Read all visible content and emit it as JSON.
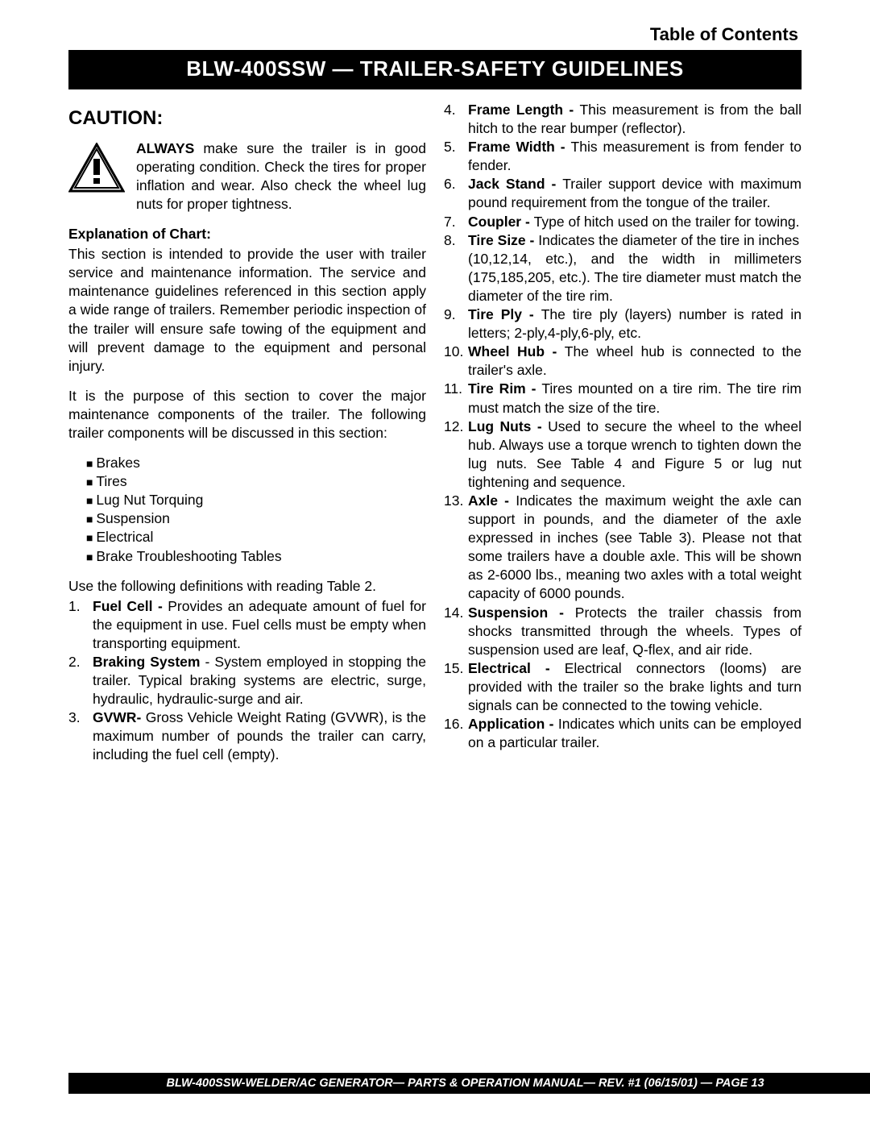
{
  "toc_label": "Table of Contents",
  "title_bar": "BLW-400SSW  — TRAILER-SAFETY GUIDELINES",
  "caution_heading": "CAUTION:",
  "caution_text_prefix": "ALWAYS",
  "caution_text_rest": " make sure the trailer is in good operating condition.  Check the tires for proper inflation and wear.  Also check the wheel lug nuts for proper tightness.",
  "explanation_heading": "Explanation of Chart:",
  "explanation_p1": "This section is intended to provide the user with trailer service and maintenance information.  The service and maintenance guidelines referenced in this section apply a wide range of trailers.  Remember periodic inspection of the trailer will ensure safe towing of the equipment and will prevent damage to the equipment and personal injury.",
  "explanation_p2": "It is the purpose of this section to cover the major maintenance components of the trailer.  The following trailer components will be discussed in this section:",
  "bullets": [
    "Brakes",
    "Tires",
    "Lug Nut Torquing",
    "Suspension",
    "Electrical",
    "Brake Troubleshooting Tables"
  ],
  "use_defs_line": "Use the following definitions with reading Table 2.",
  "defs_left": [
    {
      "n": "1.",
      "term": "Fuel Cell - ",
      "body": "Provides an adequate amount of fuel for the equipment in use.  Fuel cells must be empty when transporting equipment."
    },
    {
      "n": "2.",
      "term": "Braking System ",
      "body": "- System employed in stopping the trailer. Typical braking systems are electric, surge, hydraulic, hydraulic-surge and air."
    },
    {
      "n": "3.",
      "term": "GVWR- ",
      "body": "Gross Vehicle Weight Rating (GVWR), is the maximum number of pounds the trailer can carry, including the fuel cell (empty)."
    }
  ],
  "defs_right": [
    {
      "n": "4.",
      "term": "Frame Length - ",
      "body": "This measurement is from the ball hitch to the rear bumper (reflector)."
    },
    {
      "n": "5.",
      "term": "Frame Width - ",
      "body": "This measurement is from fender to fender."
    },
    {
      "n": "6.",
      "term": "Jack Stand - ",
      "body": "Trailer support device with maximum pound requirement from the tongue of the trailer."
    },
    {
      "n": "7.",
      "term": "Coupler - ",
      "body": "Type of hitch used on the trailer for towing."
    },
    {
      "n": "8.",
      "term": "Tire Size - ",
      "body_pre": "Indicates the diameter of the tire in inches",
      "body_wide": "(10,12,14, etc.), and the width in millimeters",
      "body_post": "(175,185,205, etc.).  The tire diameter must match the diameter of the tire rim."
    },
    {
      "n": "9.",
      "term": "Tire Ply - ",
      "body": "The tire ply (layers) number is rated in letters; 2-ply,4-ply,6-ply, etc."
    },
    {
      "n": "10.",
      "term": "Wheel Hub - ",
      "body": "The wheel hub is connected to the trailer's axle."
    },
    {
      "n": "11.",
      "term": "Tire Rim - ",
      "body": "Tires mounted on a tire rim.  The tire rim must match the size of the tire."
    },
    {
      "n": "12.",
      "term": "Lug Nuts - ",
      "body": "Used to secure the wheel to the wheel hub. Always use a torque wrench to tighten down the lug nuts.  See Table 4 and Figure  5 or lug nut tightening and sequence."
    },
    {
      "n": "13.",
      "term": "Axle - ",
      "body": "Indicates the maximum weight the axle can support in pounds, and the diameter of the axle expressed in inches (see Table 3).  Please not that some trailers have a double axle.  This will be shown as 2-6000 lbs., meaning two axles with a total weight capacity of 6000 pounds."
    },
    {
      "n": "14.",
      "term": "Suspension - ",
      "body": "Protects the trailer chassis from shocks transmitted through the wheels.  Types of suspension used are leaf, Q-flex, and air ride."
    },
    {
      "n": "15.",
      "term": "Electrical - ",
      "body": "Electrical connectors (looms) are provided with the trailer so the brake lights and turn signals can be connected to the towing vehicle."
    },
    {
      "n": "16.",
      "term": "Application - ",
      "body": "Indicates which units can be employed on a particular trailer."
    }
  ],
  "footer": "BLW-400SSW-WELDER/AC GENERATOR— PARTS & OPERATION  MANUAL— REV. #1  (06/15/01) — PAGE 13",
  "colors": {
    "page_bg": "#ffffff",
    "bar_bg": "#000000",
    "bar_fg": "#ffffff",
    "text": "#000000"
  }
}
